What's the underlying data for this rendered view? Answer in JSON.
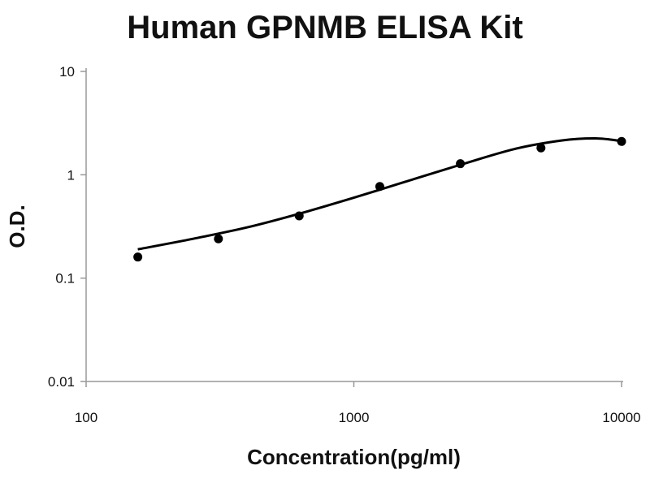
{
  "chart_data": {
    "type": "scatter",
    "title": "Human GPNMB ELISA Kit",
    "xlabel": "Concentration(pg/ml)",
    "ylabel": "O.D.",
    "x_scale": "log",
    "y_scale": "log",
    "xlim": [
      100,
      10000
    ],
    "ylim": [
      0.01,
      10
    ],
    "x_ticks": [
      100,
      1000,
      10000
    ],
    "x_tick_labels": [
      "100",
      "1000",
      "10000"
    ],
    "y_ticks": [
      0.01,
      0.1,
      1,
      10
    ],
    "y_tick_labels": [
      "0.01",
      "0.1",
      "1",
      "10"
    ],
    "grid": false,
    "legend": "none",
    "series": [
      {
        "type": "scatter",
        "color": "#000000",
        "x": [
          156,
          312,
          625,
          1250,
          2500,
          5000,
          10000
        ],
        "y": [
          0.16,
          0.24,
          0.4,
          0.77,
          1.28,
          1.82,
          2.1
        ]
      },
      {
        "type": "line",
        "color": "#000000",
        "x": [
          156,
          250,
          400,
          625,
          1000,
          1500,
          2500,
          4000,
          6000,
          8000,
          10000
        ],
        "y": [
          0.19,
          0.24,
          0.31,
          0.42,
          0.6,
          0.83,
          1.25,
          1.78,
          2.15,
          2.25,
          2.12
        ]
      }
    ]
  }
}
